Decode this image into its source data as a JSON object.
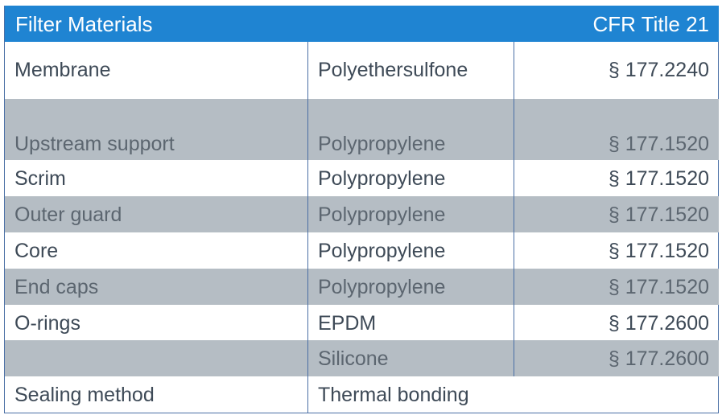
{
  "header": {
    "title": "Filter Materials",
    "regulation": "CFR Title 21"
  },
  "rows": [
    {
      "component": "Membrane",
      "material": "Polyethersulfone",
      "section": "§ 177.2240"
    },
    {
      "component": "Upstream support",
      "material": "Polypropylene",
      "section": "§ 177.1520"
    },
    {
      "component": "Scrim",
      "material": "Polypropylene",
      "section": "§ 177.1520"
    },
    {
      "component": "Outer guard",
      "material": "Polypropylene",
      "section": "§ 177.1520"
    },
    {
      "component": "Core",
      "material": "Polypropylene",
      "section": "§ 177.1520"
    },
    {
      "component": "End caps",
      "material": "Polypropylene",
      "section": "§ 177.1520"
    },
    {
      "component": "O-rings",
      "material": "EPDM",
      "section": "§ 177.2600"
    },
    {
      "component": "",
      "material": "Silicone",
      "section": "§ 177.2600"
    },
    {
      "component": "Sealing method",
      "material": "Thermal bonding",
      "section": ""
    }
  ],
  "colors": {
    "header_bg": "#1f84d2",
    "shaded_row": "#b5bdc4",
    "border": "#4a6fa5"
  }
}
